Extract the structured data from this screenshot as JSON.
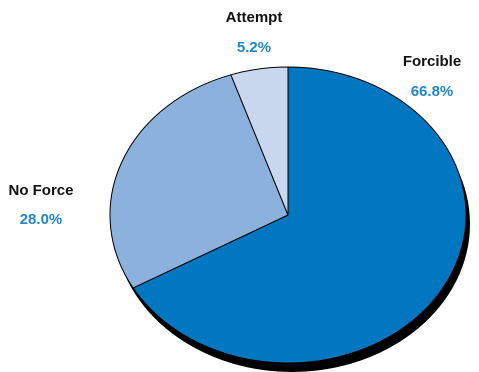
{
  "chart_data": {
    "type": "pie",
    "title": "",
    "slices": [
      {
        "label": "Forcible",
        "value_label": "66.8%",
        "value": 66.8,
        "color": "#0077c0"
      },
      {
        "label": "No Force",
        "value_label": "28.0%",
        "value": 28.0,
        "color": "#8bb1dc"
      },
      {
        "label": "Attempt",
        "value_label": "5.2%",
        "value": 5.2,
        "color": "#c9d8ef"
      }
    ],
    "start_angle": "12 o'clock",
    "direction": "clockwise",
    "effect": "3d shadow",
    "label_value_color": "#1f86c8",
    "label_name_color": "#111111",
    "shadow_color": "#000000"
  }
}
